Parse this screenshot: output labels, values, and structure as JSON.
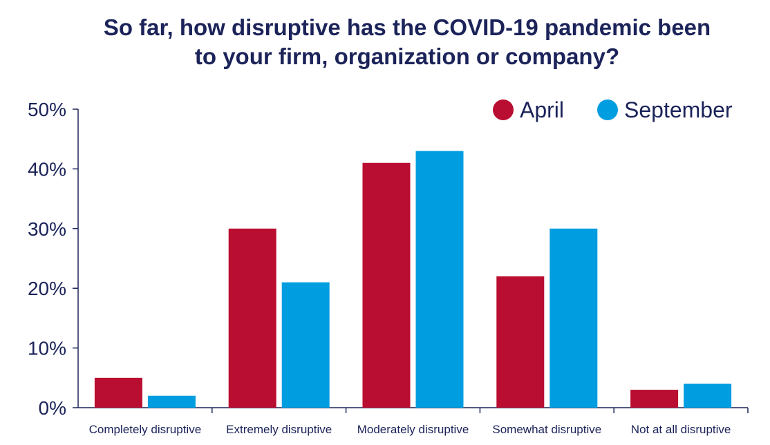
{
  "chart_data": {
    "type": "bar",
    "title_lines": [
      "So far, how disruptive has the COVID-19 pandemic been",
      "to your firm, organization or company?"
    ],
    "categories": [
      "Completely disruptive",
      "Extremely disruptive",
      "Moderately disruptive",
      "Somewhat disruptive",
      "Not at all disruptive"
    ],
    "series": [
      {
        "name": "April",
        "color": "#b90e31",
        "values": [
          5,
          30,
          41,
          22,
          3
        ]
      },
      {
        "name": "September",
        "color": "#009de0",
        "values": [
          2,
          21,
          43,
          30,
          4
        ]
      }
    ],
    "yticks": [
      "0%",
      "10%",
      "20%",
      "30%",
      "40%",
      "50%"
    ],
    "ylim": [
      0,
      50
    ],
    "legend_position": "top-right",
    "axis_color": "#1b2359",
    "text_color": "#1b2359"
  }
}
